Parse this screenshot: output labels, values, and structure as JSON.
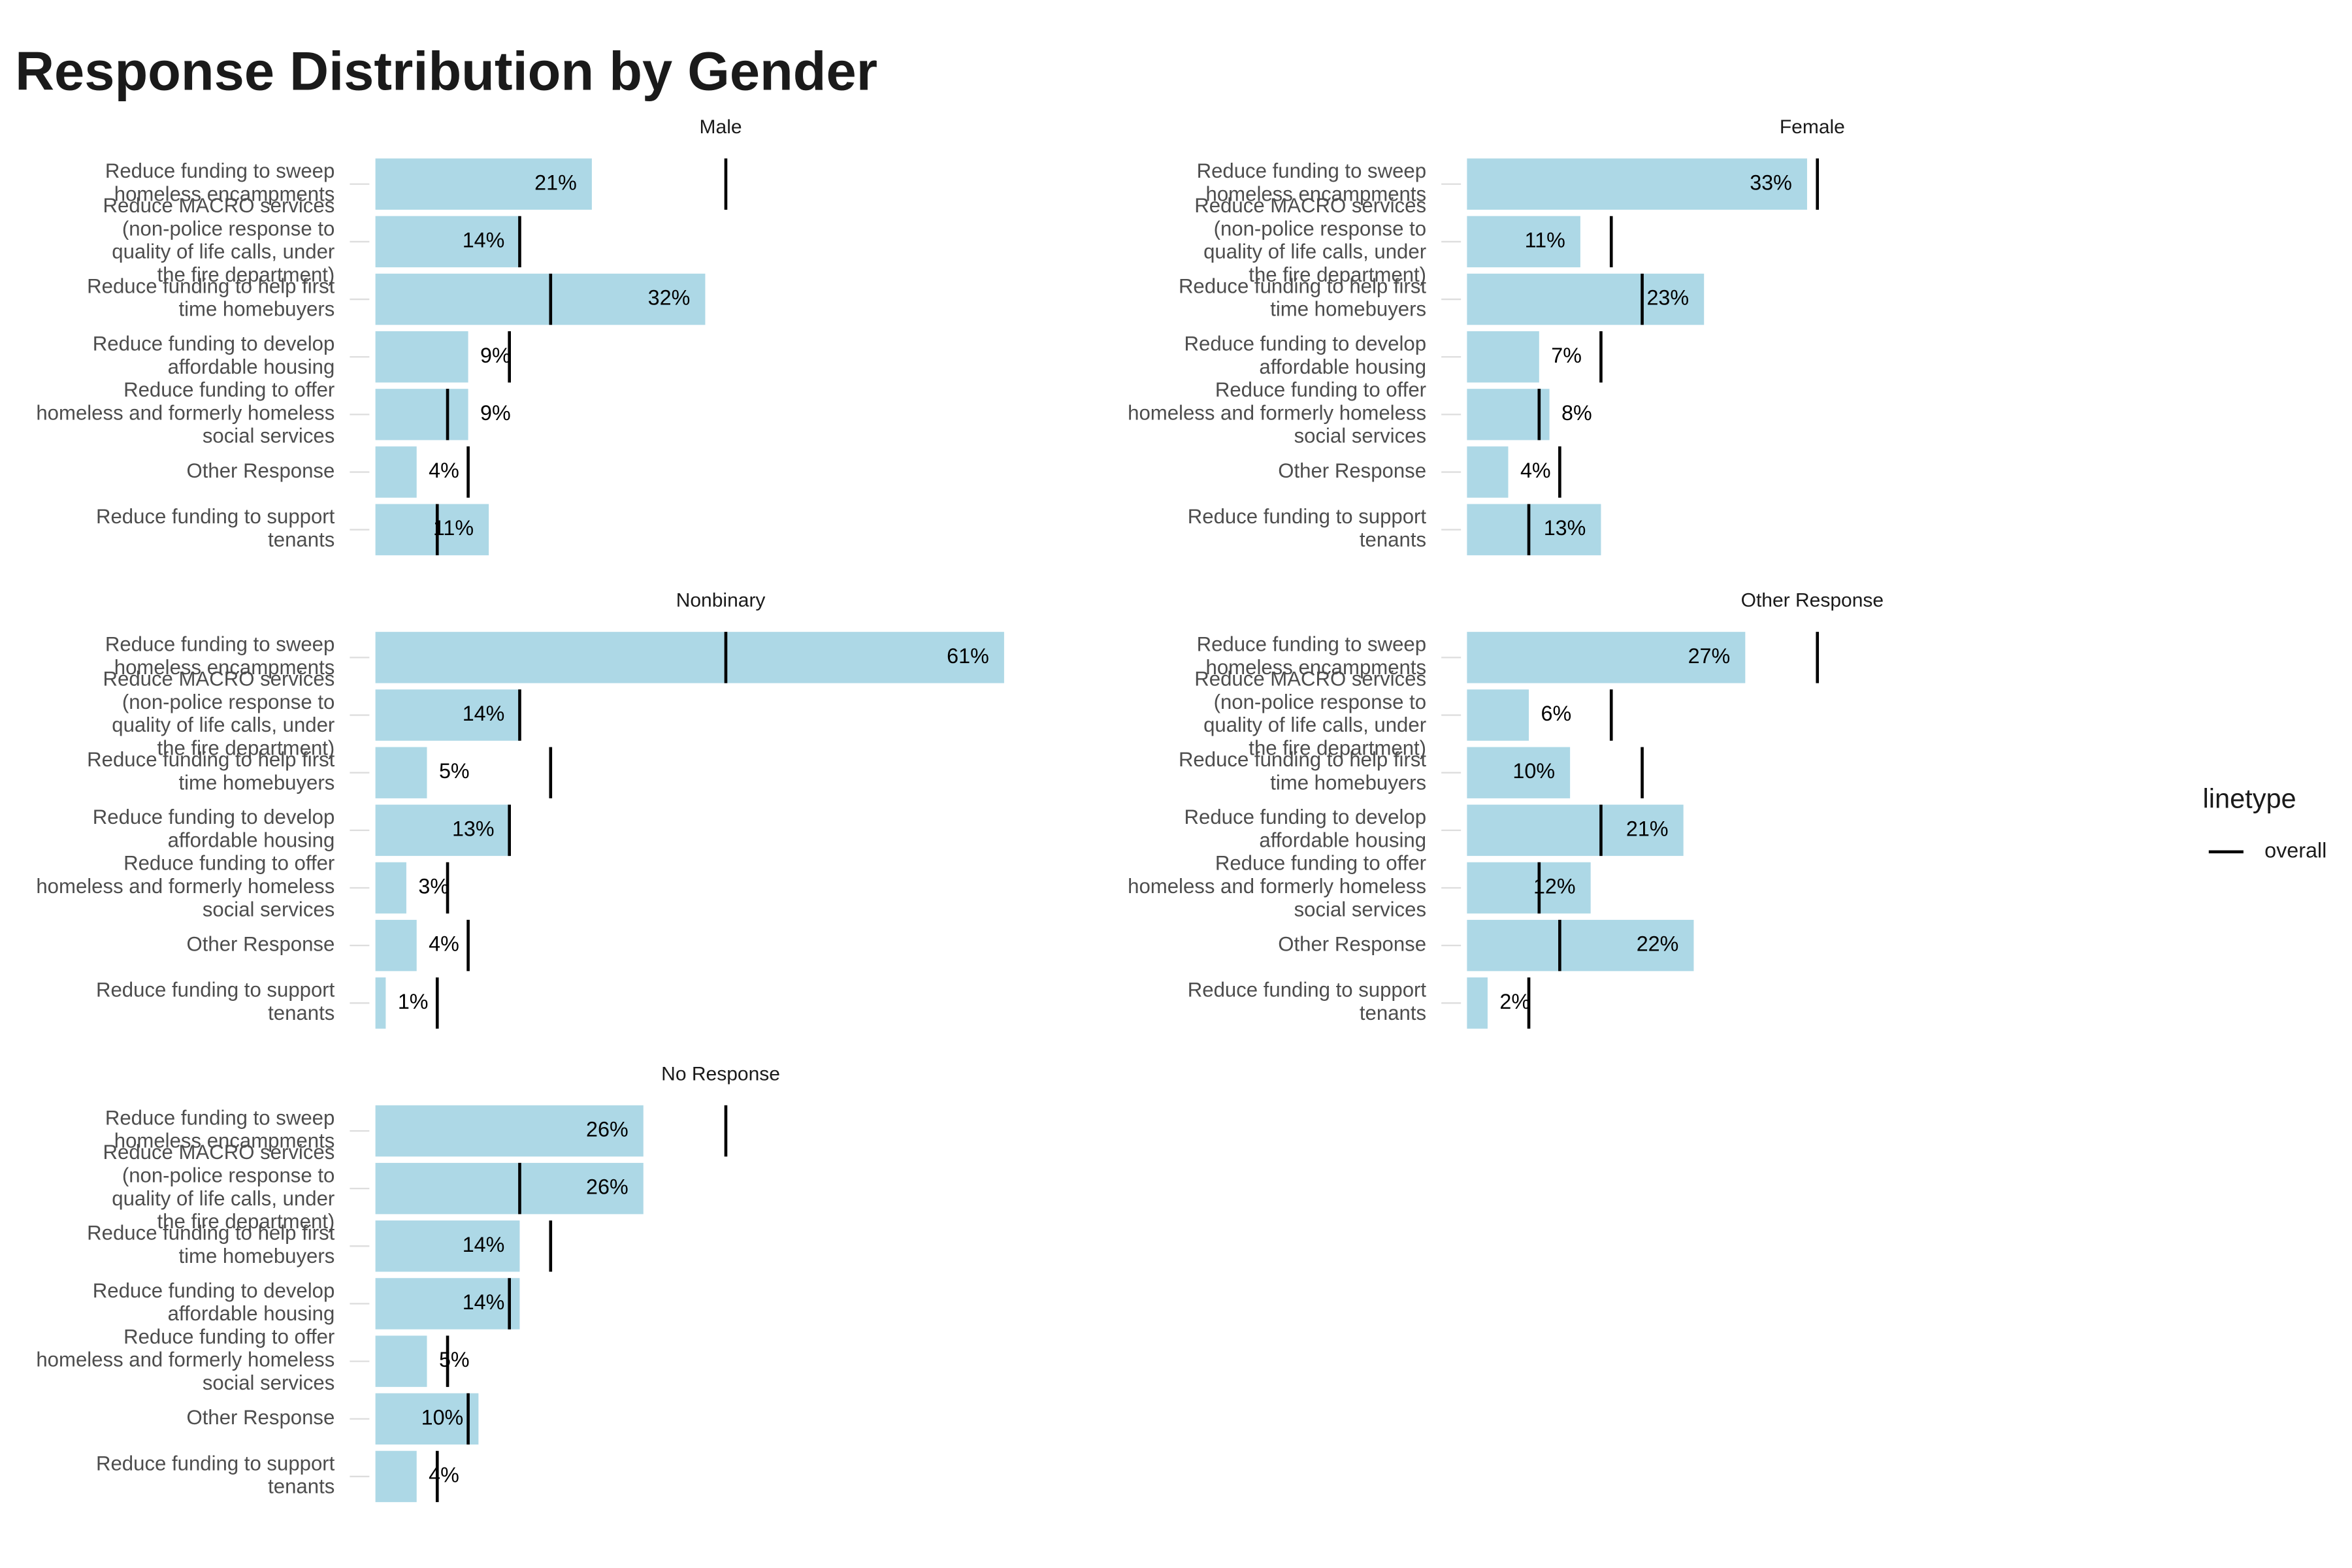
{
  "title": "Response Distribution by Gender",
  "legend": {
    "title": "linetype",
    "position": "right"
  },
  "overall": {
    "name": "overall",
    "color": "#000000",
    "values": [
      34,
      14,
      17,
      13,
      7,
      9,
      6
    ]
  },
  "chart_data": [
    {
      "type": "bar",
      "orientation": "horizontal",
      "title": "Male",
      "color": "#add8e6",
      "xlim": [
        0,
        67
      ],
      "categories": [
        "Reduce funding to sweep\nhomeless encampments",
        "Reduce MACRO services\n(non-police response to\nquality of life calls, under\nthe fire department)",
        "Reduce funding to help first\ntime homebuyers",
        "Reduce funding to develop\naffordable housing",
        "Reduce funding to offer\nhomeless and formerly homeless\nsocial services",
        "Other Response",
        "Reduce funding to support\ntenants"
      ],
      "values": [
        21,
        14,
        32,
        9,
        9,
        4,
        11
      ],
      "value_labels": [
        "21%",
        "14%",
        "32%",
        "9%",
        "9%",
        "4%",
        "11%"
      ]
    },
    {
      "type": "bar",
      "orientation": "horizontal",
      "title": "Female",
      "color": "#add8e6",
      "xlim": [
        0,
        67
      ],
      "categories": [
        "Reduce funding to sweep\nhomeless encampments",
        "Reduce MACRO services\n(non-police response to\nquality of life calls, under\nthe fire department)",
        "Reduce funding to help first\ntime homebuyers",
        "Reduce funding to develop\naffordable housing",
        "Reduce funding to offer\nhomeless and formerly homeless\nsocial services",
        "Other Response",
        "Reduce funding to support\ntenants"
      ],
      "values": [
        33,
        11,
        23,
        7,
        8,
        4,
        13
      ],
      "value_labels": [
        "33%",
        "11%",
        "23%",
        "7%",
        "8%",
        "4%",
        "13%"
      ]
    },
    {
      "type": "bar",
      "orientation": "horizontal",
      "title": "Nonbinary",
      "color": "#add8e6",
      "xlim": [
        0,
        67
      ],
      "categories": [
        "Reduce funding to sweep\nhomeless encampments",
        "Reduce MACRO services\n(non-police response to\nquality of life calls, under\nthe fire department)",
        "Reduce funding to help first\ntime homebuyers",
        "Reduce funding to develop\naffordable housing",
        "Reduce funding to offer\nhomeless and formerly homeless\nsocial services",
        "Other Response",
        "Reduce funding to support\ntenants"
      ],
      "values": [
        61,
        14,
        5,
        13,
        3,
        4,
        1
      ],
      "value_labels": [
        "61%",
        "14%",
        "5%",
        "13%",
        "3%",
        "4%",
        "1%"
      ]
    },
    {
      "type": "bar",
      "orientation": "horizontal",
      "title": "Other Response",
      "color": "#add8e6",
      "xlim": [
        0,
        67
      ],
      "categories": [
        "Reduce funding to sweep\nhomeless encampments",
        "Reduce MACRO services\n(non-police response to\nquality of life calls, under\nthe fire department)",
        "Reduce funding to help first\ntime homebuyers",
        "Reduce funding to develop\naffordable housing",
        "Reduce funding to offer\nhomeless and formerly homeless\nsocial services",
        "Other Response",
        "Reduce funding to support\ntenants"
      ],
      "values": [
        27,
        6,
        10,
        21,
        12,
        22,
        2
      ],
      "value_labels": [
        "27%",
        "6%",
        "10%",
        "21%",
        "12%",
        "22%",
        "2%"
      ]
    },
    {
      "type": "bar",
      "orientation": "horizontal",
      "title": "No Response",
      "color": "#add8e6",
      "xlim": [
        0,
        67
      ],
      "categories": [
        "Reduce funding to sweep\nhomeless encampments",
        "Reduce MACRO services\n(non-police response to\nquality of life calls, under\nthe fire department)",
        "Reduce funding to help first\ntime homebuyers",
        "Reduce funding to develop\naffordable housing",
        "Reduce funding to offer\nhomeless and formerly homeless\nsocial services",
        "Other Response",
        "Reduce funding to support\ntenants"
      ],
      "values": [
        26,
        26,
        14,
        14,
        5,
        10,
        4
      ],
      "value_labels": [
        "26%",
        "26%",
        "14%",
        "14%",
        "5%",
        "10%",
        "4%"
      ]
    }
  ]
}
